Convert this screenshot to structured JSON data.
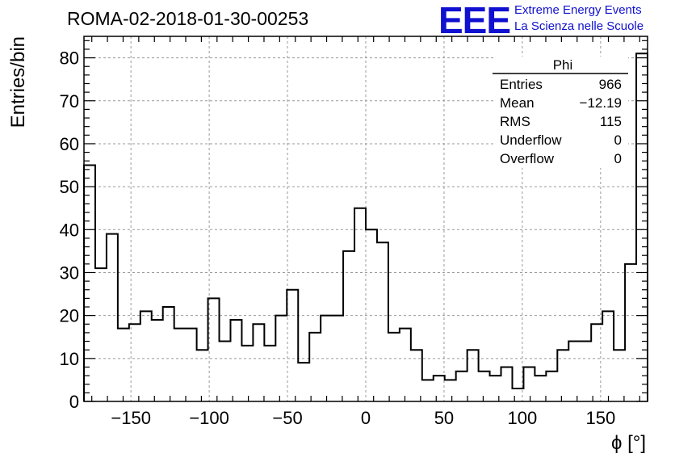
{
  "header": {
    "title": "ROMA-02-2018-01-30-00253",
    "logo_text": "EEE",
    "logo_line1": "Extreme Energy Events",
    "logo_line2": "La Scienza nelle Scuole",
    "logo_color": "#1010d0"
  },
  "stats_box": {
    "name": "Phi",
    "rows": [
      {
        "label": "Entries",
        "value": "966"
      },
      {
        "label": "Mean",
        "value": "−12.19"
      },
      {
        "label": "RMS",
        "value": "115"
      },
      {
        "label": "Underflow",
        "value": "0"
      },
      {
        "label": "Overflow",
        "value": "0"
      }
    ]
  },
  "chart_data": {
    "type": "histogram",
    "xlabel": "ϕ [°]",
    "ylabel": "Entries/bin",
    "xlim": [
      -180,
      180
    ],
    "ylim": [
      0,
      85
    ],
    "bin_width": 7.2,
    "grid": true,
    "xticks": [
      -150,
      -100,
      -50,
      0,
      50,
      100,
      150
    ],
    "xtick_labels": [
      "−150",
      "−100",
      "−50",
      "0",
      "50",
      "100",
      "150"
    ],
    "yticks": [
      0,
      10,
      20,
      30,
      40,
      50,
      60,
      70,
      80
    ],
    "ytick_labels": [
      "0",
      "10",
      "20",
      "30",
      "40",
      "50",
      "60",
      "70",
      "80"
    ],
    "values": [
      55,
      31,
      39,
      17,
      18,
      21,
      19,
      22,
      17,
      17,
      12,
      24,
      14,
      19,
      13,
      18,
      13,
      20,
      26,
      9,
      16,
      20,
      20,
      35,
      45,
      40,
      37,
      16,
      17,
      12,
      5,
      6,
      5,
      7,
      12,
      7,
      6,
      8,
      3,
      8,
      6,
      7,
      12,
      14,
      14,
      18,
      21,
      12,
      32,
      81
    ],
    "line_color": "#000000"
  }
}
